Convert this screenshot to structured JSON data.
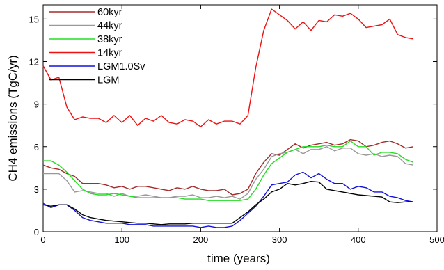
{
  "chart_data": {
    "type": "line",
    "xlabel": "time (years)",
    "ylabel": "CH4 emissions (TgC/yr)",
    "xlim": [
      0,
      500
    ],
    "ylim": [
      0,
      16
    ],
    "xticks": [
      0,
      100,
      200,
      300,
      400,
      500
    ],
    "yticks": [
      0,
      3,
      6,
      9,
      12,
      15
    ],
    "grid": false,
    "legend_position": "top-left",
    "x": [
      0,
      10,
      20,
      30,
      40,
      50,
      60,
      70,
      80,
      90,
      100,
      110,
      120,
      130,
      140,
      150,
      160,
      170,
      180,
      190,
      200,
      210,
      220,
      230,
      240,
      250,
      260,
      270,
      280,
      290,
      300,
      310,
      320,
      330,
      340,
      350,
      360,
      370,
      380,
      390,
      400,
      410,
      420,
      430,
      440,
      450,
      460,
      470
    ],
    "series": [
      {
        "name": "60kyr",
        "color": "#a52a2a",
        "values": [
          4.7,
          4.5,
          4.4,
          4.1,
          3.9,
          3.4,
          3.4,
          3.4,
          3.3,
          3.1,
          3.2,
          3.0,
          3.2,
          3.2,
          3.1,
          3.0,
          2.9,
          3.1,
          3.0,
          3.2,
          3.0,
          2.9,
          2.9,
          3.0,
          2.6,
          2.7,
          3.0,
          4.1,
          4.9,
          5.5,
          5.4,
          5.8,
          6.2,
          5.9,
          6.1,
          6.2,
          6.3,
          6.1,
          6.2,
          6.5,
          6.4,
          6.0,
          6.1,
          6.3,
          6.4,
          6.2,
          5.9,
          6.0
        ]
      },
      {
        "name": "44kyr",
        "color": "#999999",
        "values": [
          4.1,
          4.1,
          4.1,
          3.6,
          2.8,
          2.9,
          2.8,
          2.7,
          2.7,
          2.5,
          2.7,
          2.5,
          2.5,
          2.6,
          2.5,
          2.4,
          2.4,
          2.5,
          2.5,
          2.6,
          2.4,
          2.4,
          2.5,
          2.4,
          2.5,
          2.3,
          2.7,
          3.7,
          4.4,
          5.3,
          5.5,
          5.6,
          5.8,
          5.5,
          5.8,
          5.8,
          6.0,
          5.7,
          5.9,
          5.9,
          5.5,
          5.4,
          5.5,
          5.3,
          5.4,
          5.3,
          4.8,
          4.7
        ]
      },
      {
        "name": "38kyr",
        "color": "#22dd22",
        "values": [
          5.0,
          5.0,
          4.7,
          4.2,
          3.6,
          3.0,
          2.7,
          2.6,
          2.6,
          2.7,
          2.6,
          2.5,
          2.4,
          2.4,
          2.4,
          2.4,
          2.4,
          2.4,
          2.3,
          2.3,
          2.3,
          2.2,
          2.2,
          2.2,
          2.2,
          2.2,
          2.3,
          3.0,
          4.0,
          4.8,
          5.2,
          5.6,
          5.8,
          6.0,
          6.0,
          6.0,
          6.1,
          6.0,
          6.0,
          6.4,
          6.0,
          6.0,
          5.4,
          5.6,
          5.6,
          5.5,
          5.1,
          4.9
        ]
      },
      {
        "name": "14kyr",
        "color": "#ee1111",
        "values": [
          11.7,
          10.7,
          10.9,
          8.8,
          7.9,
          8.1,
          8.0,
          8.0,
          7.7,
          8.2,
          7.7,
          8.2,
          7.5,
          8.0,
          7.8,
          8.2,
          7.7,
          7.6,
          7.9,
          7.8,
          7.4,
          7.9,
          7.6,
          7.8,
          7.8,
          7.6,
          8.2,
          11.6,
          14.2,
          15.7,
          15.3,
          14.9,
          14.3,
          14.8,
          14.2,
          14.9,
          14.8,
          15.3,
          15.2,
          15.4,
          15.0,
          14.4,
          14.5,
          14.6,
          15.0,
          13.9,
          13.7,
          13.6
        ]
      },
      {
        "name": "LGM1.0Sv",
        "color": "#1111dd",
        "values": [
          2.0,
          1.7,
          1.9,
          1.9,
          1.5,
          1.0,
          0.8,
          0.7,
          0.6,
          0.6,
          0.6,
          0.5,
          0.5,
          0.5,
          0.4,
          0.4,
          0.4,
          0.4,
          0.4,
          0.4,
          0.3,
          0.4,
          0.3,
          0.3,
          0.4,
          0.8,
          1.3,
          1.8,
          2.5,
          3.3,
          3.4,
          3.5,
          4.0,
          4.2,
          3.8,
          4.1,
          3.7,
          3.4,
          3.4,
          3.0,
          3.2,
          3.1,
          2.8,
          2.8,
          2.5,
          2.4,
          2.2,
          2.1
        ]
      },
      {
        "name": "LGM",
        "color": "#000000",
        "values": [
          1.9,
          1.8,
          1.9,
          1.9,
          1.6,
          1.2,
          1.0,
          0.9,
          0.8,
          0.75,
          0.7,
          0.65,
          0.6,
          0.6,
          0.55,
          0.5,
          0.55,
          0.55,
          0.55,
          0.6,
          0.6,
          0.6,
          0.6,
          0.6,
          0.6,
          1.0,
          1.4,
          1.9,
          2.3,
          2.8,
          3.0,
          3.4,
          3.3,
          3.4,
          3.55,
          3.5,
          3.0,
          2.9,
          2.8,
          2.7,
          2.6,
          2.55,
          2.5,
          2.45,
          2.1,
          2.05,
          2.1,
          2.1
        ]
      }
    ]
  }
}
